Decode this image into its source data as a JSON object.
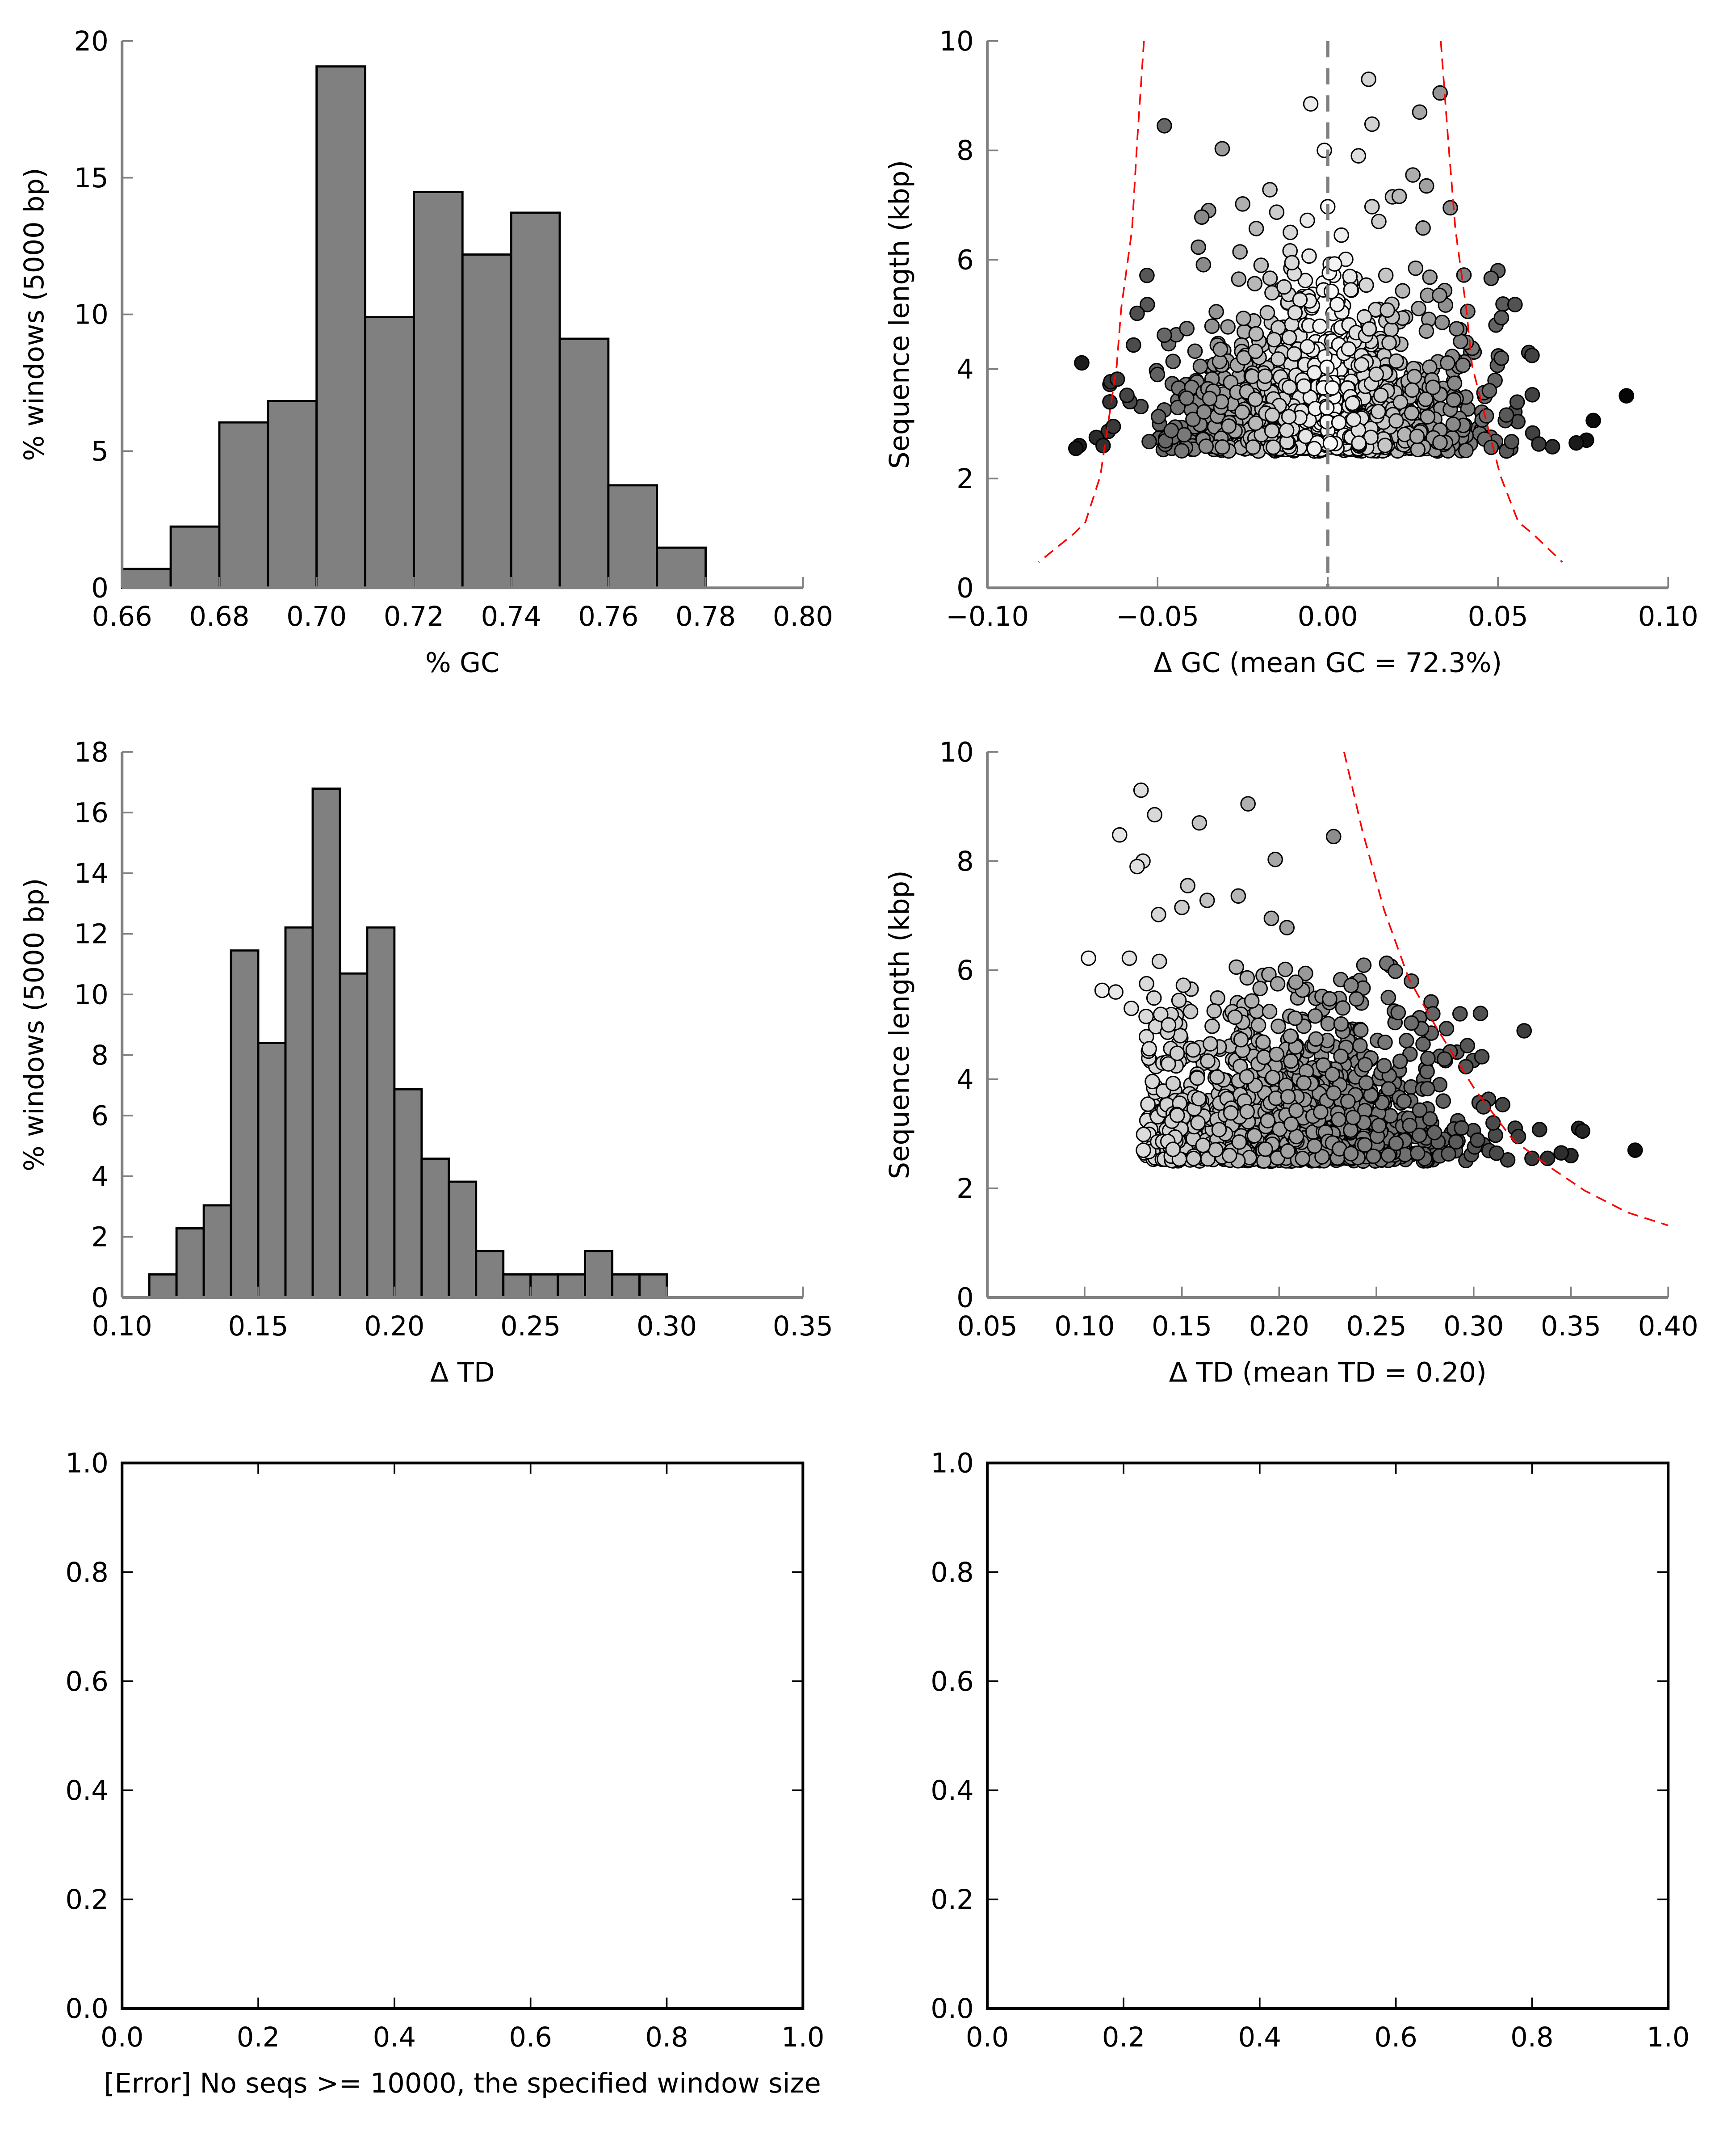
{
  "chart_data": [
    {
      "id": "gc-hist",
      "type": "bar",
      "title": "",
      "xlabel": "% GC",
      "ylabel": "% windows (5000 bp)",
      "xlim": [
        0.66,
        0.8
      ],
      "ylim": [
        0,
        20
      ],
      "xticks": [
        "0.66",
        "0.68",
        "0.70",
        "0.72",
        "0.74",
        "0.76",
        "0.78",
        "0.80"
      ],
      "yticks": [
        "0",
        "5",
        "10",
        "15",
        "20"
      ],
      "bin_width": 0.01,
      "bin_starts": [
        0.66,
        0.67,
        0.68,
        0.69,
        0.7,
        0.71,
        0.72,
        0.73,
        0.74,
        0.75,
        0.76,
        0.77
      ],
      "values": [
        0.69,
        2.24,
        6.05,
        6.83,
        19.07,
        9.9,
        14.48,
        12.19,
        13.72,
        9.11,
        3.75,
        1.47
      ],
      "bar_color": "#808080"
    },
    {
      "id": "gc-scatter",
      "type": "scatter",
      "xlabel": "Δ GC (mean GC = 72.3%)",
      "ylabel": "Sequence length (kbp)",
      "xlim": [
        -0.1,
        0.1
      ],
      "ylim": [
        0,
        10
      ],
      "xticks": [
        "−0.10",
        "−0.05",
        "0.00",
        "0.05",
        "0.10"
      ],
      "yticks": [
        "0",
        "2",
        "4",
        "6",
        "8",
        "10"
      ],
      "vline_x": 0.0,
      "vline_color": "#808080",
      "threshold_color": "#ff0000",
      "threshold_left": [
        [
          -0.054,
          10
        ],
        [
          -0.056,
          8.16
        ],
        [
          -0.0575,
          6.55
        ],
        [
          -0.0607,
          5.1
        ],
        [
          -0.062,
          4.06
        ],
        [
          -0.0668,
          2.05
        ],
        [
          -0.0712,
          1.2
        ],
        [
          -0.0744,
          1.0
        ],
        [
          -0.0849,
          0.47
        ]
      ],
      "threshold_right": [
        [
          0.0332,
          10
        ],
        [
          0.0354,
          8.16
        ],
        [
          0.0375,
          6.55
        ],
        [
          0.0407,
          5.1
        ],
        [
          0.0424,
          4.06
        ],
        [
          0.0507,
          2.05
        ],
        [
          0.056,
          1.2
        ],
        [
          0.06,
          1.0
        ],
        [
          0.0689,
          0.47
        ]
      ],
      "outliers": [
        [
          -0.048,
          8.45
        ],
        [
          -0.031,
          8.03
        ],
        [
          -0.005,
          8.85
        ],
        [
          -0.001,
          8.0
        ],
        [
          0.012,
          9.3
        ],
        [
          0.013,
          8.48
        ],
        [
          0.009,
          7.9
        ],
        [
          0.027,
          8.7
        ],
        [
          0.033,
          9.05
        ],
        [
          0.025,
          7.55
        ],
        [
          0.029,
          7.35
        ],
        [
          -0.017,
          7.28
        ],
        [
          -0.025,
          7.02
        ],
        [
          0.0,
          6.97
        ],
        [
          0.013,
          6.97
        ],
        [
          0.036,
          6.95
        ],
        [
          -0.035,
          6.9
        ],
        [
          -0.037,
          6.78
        ],
        [
          -0.015,
          6.87
        ],
        [
          -0.006,
          6.72
        ],
        [
          0.019,
          7.15
        ],
        [
          0.021,
          7.16
        ],
        [
          0.015,
          6.7
        ],
        [
          0.028,
          6.58
        ],
        [
          -0.021,
          6.57
        ],
        [
          -0.011,
          6.5
        ],
        [
          0.004,
          6.45
        ],
        [
          -0.038,
          6.23
        ],
        [
          0.05,
          5.8
        ],
        [
          0.04,
          5.72
        ],
        [
          0.048,
          5.66
        ],
        [
          0.055,
          5.18
        ],
        [
          0.051,
          4.94
        ],
        [
          -0.053,
          5.18
        ],
        [
          -0.056,
          5.02
        ],
        [
          -0.048,
          4.62
        ],
        [
          0.06,
          4.25
        ],
        [
          0.051,
          4.2
        ],
        [
          0.078,
          3.06
        ],
        [
          0.076,
          2.7
        ],
        [
          0.073,
          2.65
        ],
        [
          0.066,
          2.58
        ],
        [
          0.062,
          2.63
        ],
        [
          -0.073,
          2.6
        ],
        [
          -0.074,
          2.55
        ],
        [
          -0.068,
          2.75
        ],
        [
          -0.066,
          2.6
        ],
        [
          -0.064,
          3.4
        ],
        [
          -0.059,
          3.52
        ],
        [
          -0.063,
          2.95
        ]
      ],
      "cluster": {
        "count": 1400,
        "x_sd": 0.022,
        "y_min": 2.5,
        "y_tail_mean": 0.9,
        "seed": 7
      }
    },
    {
      "id": "td-hist",
      "type": "bar",
      "title": "",
      "xlabel": "Δ TD",
      "ylabel": "% windows (5000 bp)",
      "xlim": [
        0.1,
        0.35
      ],
      "ylim": [
        0,
        18
      ],
      "xticks": [
        "0.10",
        "0.15",
        "0.20",
        "0.25",
        "0.30",
        "0.35"
      ],
      "yticks": [
        "0",
        "2",
        "4",
        "6",
        "8",
        "10",
        "12",
        "14",
        "16",
        "18"
      ],
      "bin_width": 0.01,
      "bin_starts": [
        0.11,
        0.12,
        0.13,
        0.14,
        0.15,
        0.16,
        0.17,
        0.18,
        0.19,
        0.2,
        0.21,
        0.22,
        0.23,
        0.24,
        0.25,
        0.26,
        0.27,
        0.28,
        0.29
      ],
      "values": [
        0.76,
        2.28,
        3.04,
        11.45,
        8.4,
        12.21,
        16.79,
        10.69,
        12.21,
        6.87,
        4.58,
        3.82,
        1.53,
        0.76,
        0.76,
        0.76,
        1.53,
        0.76,
        0.76
      ],
      "bar_color": "#808080"
    },
    {
      "id": "td-scatter",
      "type": "scatter",
      "xlabel": "Δ TD (mean TD = 0.20)",
      "ylabel": "Sequence length (kbp)",
      "xlim": [
        0.05,
        0.4
      ],
      "ylim": [
        0,
        10
      ],
      "xticks": [
        "0.05",
        "0.10",
        "0.15",
        "0.20",
        "0.25",
        "0.30",
        "0.35",
        "0.40"
      ],
      "yticks": [
        "0",
        "2",
        "4",
        "6",
        "8",
        "10"
      ],
      "threshold_color": "#ff0000",
      "threshold": [
        [
          0.2334,
          10
        ],
        [
          0.2427,
          8.57
        ],
        [
          0.254,
          7.1
        ],
        [
          0.2667,
          5.84
        ],
        [
          0.2808,
          4.95
        ],
        [
          0.3005,
          3.82
        ],
        [
          0.3202,
          2.89
        ],
        [
          0.34,
          2.37
        ],
        [
          0.357,
          1.96
        ],
        [
          0.379,
          1.56
        ],
        [
          0.4,
          1.32
        ]
      ],
      "outliers": [
        [
          0.129,
          9.3
        ],
        [
          0.136,
          8.85
        ],
        [
          0.118,
          8.48
        ],
        [
          0.159,
          8.7
        ],
        [
          0.184,
          9.05
        ],
        [
          0.228,
          8.45
        ],
        [
          0.198,
          8.03
        ],
        [
          0.13,
          8.0
        ],
        [
          0.127,
          7.9
        ],
        [
          0.153,
          7.55
        ],
        [
          0.179,
          7.36
        ],
        [
          0.163,
          7.28
        ],
        [
          0.138,
          7.02
        ],
        [
          0.15,
          7.15
        ],
        [
          0.196,
          6.95
        ],
        [
          0.204,
          6.78
        ],
        [
          0.102,
          6.22
        ],
        [
          0.123,
          6.22
        ],
        [
          0.109,
          5.63
        ],
        [
          0.116,
          5.6
        ],
        [
          0.124,
          5.3
        ],
        [
          0.268,
          5.8
        ],
        [
          0.279,
          5.2
        ],
        [
          0.293,
          5.2
        ],
        [
          0.268,
          5.03
        ],
        [
          0.285,
          4.37
        ],
        [
          0.296,
          4.23
        ],
        [
          0.237,
          5.72
        ],
        [
          0.242,
          4.9
        ],
        [
          0.354,
          3.1
        ],
        [
          0.356,
          3.05
        ],
        [
          0.383,
          2.7
        ],
        [
          0.35,
          2.6
        ],
        [
          0.345,
          2.65
        ],
        [
          0.338,
          2.55
        ],
        [
          0.33,
          2.55
        ],
        [
          0.323,
          2.95
        ],
        [
          0.31,
          3.2
        ]
      ],
      "cluster": {
        "count": 1400,
        "x_mean": 0.205,
        "x_sd": 0.04,
        "y_min": 2.5,
        "y_tail_mean": 0.9,
        "seed": 11
      }
    },
    {
      "id": "empty-left",
      "type": "scatter",
      "xlabel": "[Error] No seqs >= 10000, the specified window size",
      "ylabel": "",
      "xlim": [
        0,
        1
      ],
      "ylim": [
        0,
        1
      ],
      "xticks": [
        "0.0",
        "0.2",
        "0.4",
        "0.6",
        "0.8",
        "1.0"
      ],
      "yticks": [
        "0.0",
        "0.2",
        "0.4",
        "0.6",
        "0.8",
        "1.0"
      ]
    },
    {
      "id": "empty-right",
      "type": "scatter",
      "xlabel": "",
      "ylabel": "",
      "xlim": [
        0,
        1
      ],
      "ylim": [
        0,
        1
      ],
      "xticks": [
        "0.0",
        "0.2",
        "0.4",
        "0.6",
        "0.8",
        "1.0"
      ],
      "yticks": [
        "0.0",
        "0.2",
        "0.4",
        "0.6",
        "0.8",
        "1.0"
      ]
    }
  ]
}
